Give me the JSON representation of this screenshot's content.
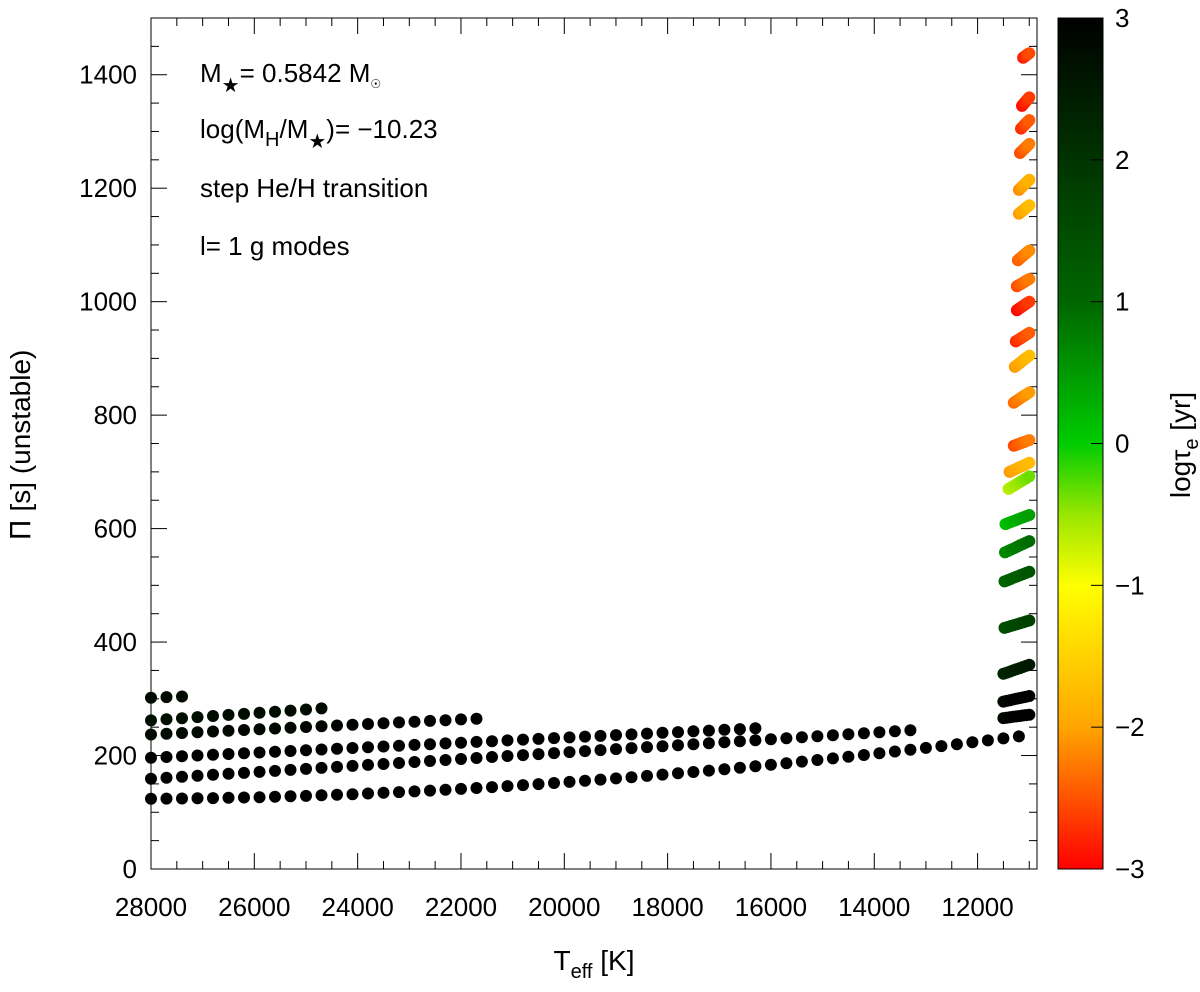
{
  "chart_data": {
    "type": "scatter",
    "x_axis": {
      "label_main": "T",
      "label_sub": "eff",
      "label_unit": " [K]",
      "range": [
        28000,
        10850
      ],
      "reversed": true,
      "major_ticks": [
        28000,
        26000,
        24000,
        22000,
        20000,
        18000,
        16000,
        14000,
        12000
      ],
      "minor_step": 500
    },
    "y_axis": {
      "label_symbol": "Π",
      "label_text": " [s] (unstable)",
      "range": [
        0,
        1500
      ],
      "major_ticks": [
        0,
        200,
        400,
        600,
        800,
        1000,
        1200,
        1400
      ],
      "minor_step": 50
    },
    "colorbar": {
      "label_main": "logτ",
      "label_sub": "e",
      "label_unit": " [yr]",
      "range": [
        -3,
        3
      ],
      "ticks": [
        3,
        2,
        1,
        0,
        -1,
        -2,
        -3
      ],
      "tick_labels": [
        "3",
        "2",
        "1",
        "0",
        "−1",
        "−2",
        "−3"
      ],
      "colors": [
        "#ff0000",
        "#ffa500",
        "#ffff00",
        "#99e600",
        "#00cc00",
        "#006600",
        "#000000"
      ]
    },
    "annotations": {
      "mass_prefix": "M",
      "mass_star": "★",
      "mass_value": "= 0.5842 M",
      "mass_sun": "☉",
      "hmass_prefix": "log(M",
      "hmass_sub1": "H",
      "hmass_mid": "/M",
      "hmass_star": "★",
      "hmass_value": ")= −10.23",
      "transition": "step He/H transition",
      "modes": "l= 1 g modes"
    },
    "series_tracks": [
      {
        "t_start": 28000,
        "t_end": 27400,
        "p_start": 302,
        "p_end": 304,
        "logtau_start": 2.8,
        "logtau_end": 2.8
      },
      {
        "t_start": 28000,
        "t_end": 24700,
        "p_start": 262,
        "p_end": 283,
        "logtau_start": 2.7,
        "logtau_end": 2.8
      },
      {
        "t_start": 28000,
        "t_end": 21700,
        "p_start": 237,
        "p_end": 265,
        "logtau_start": 2.8,
        "logtau_end": 3.0
      },
      {
        "t_start": 28000,
        "t_end": 16300,
        "p_start": 196,
        "p_end": 248,
        "logtau_start": 3.0,
        "logtau_end": 3.0
      },
      {
        "t_start": 28000,
        "t_end": 13200,
        "p_start": 159,
        "p_end": 245,
        "logtau_start": 3.0,
        "logtau_end": 3.0
      },
      {
        "t_start": 28000,
        "t_end": 11000,
        "p_start": 124,
        "p_end": 236,
        "logtau_start": 3.0,
        "logtau_end": 3.0,
        "curved": true
      }
    ],
    "cool_edge_segments": [
      {
        "t_start": 11500,
        "t_end": 11000,
        "p_start": 266,
        "p_end": 272,
        "logtau": 3.0
      },
      {
        "t_start": 11500,
        "t_end": 11000,
        "p_start": 295,
        "p_end": 305,
        "logtau": 3.0
      },
      {
        "t_start": 11500,
        "t_end": 11000,
        "p_start": 344,
        "p_end": 360,
        "logtau": 2.4
      },
      {
        "t_start": 11480,
        "t_end": 11000,
        "p_start": 425,
        "p_end": 438,
        "logtau": 1.6
      },
      {
        "t_start": 11480,
        "t_end": 11000,
        "p_start": 507,
        "p_end": 524,
        "logtau": 1.2
      },
      {
        "t_start": 11470,
        "t_end": 11000,
        "p_start": 558,
        "p_end": 578,
        "logtau": 0.8
      },
      {
        "t_start": 11460,
        "t_end": 11000,
        "p_start": 608,
        "p_end": 624,
        "logtau": 0.3
      },
      {
        "t_start": 11400,
        "t_end": 11000,
        "p_start": 670,
        "p_end": 692,
        "logtau": -0.5
      },
      {
        "t_start": 11380,
        "t_end": 11000,
        "p_start": 700,
        "p_end": 716,
        "logtau": -1.9
      },
      {
        "t_start": 11300,
        "t_end": 11000,
        "p_start": 746,
        "p_end": 756,
        "logtau": -2.4
      },
      {
        "t_start": 11300,
        "t_end": 11000,
        "p_start": 822,
        "p_end": 840,
        "logtau": -2.2
      },
      {
        "t_start": 11280,
        "t_end": 11000,
        "p_start": 885,
        "p_end": 905,
        "logtau": -1.9
      },
      {
        "t_start": 11260,
        "t_end": 11000,
        "p_start": 930,
        "p_end": 945,
        "logtau": -2.6
      },
      {
        "t_start": 11240,
        "t_end": 11000,
        "p_start": 985,
        "p_end": 1000,
        "logtau": -2.8
      },
      {
        "t_start": 11240,
        "t_end": 11000,
        "p_start": 1027,
        "p_end": 1040,
        "logtau": -2.4
      },
      {
        "t_start": 11220,
        "t_end": 11000,
        "p_start": 1073,
        "p_end": 1090,
        "logtau": -2.3
      },
      {
        "t_start": 11200,
        "t_end": 11000,
        "p_start": 1155,
        "p_end": 1170,
        "logtau": -1.9
      },
      {
        "t_start": 11200,
        "t_end": 11000,
        "p_start": 1197,
        "p_end": 1215,
        "logtau": -2.0
      },
      {
        "t_start": 11180,
        "t_end": 11000,
        "p_start": 1262,
        "p_end": 1278,
        "logtau": -2.4
      },
      {
        "t_start": 11160,
        "t_end": 11000,
        "p_start": 1305,
        "p_end": 1320,
        "logtau": -2.6
      },
      {
        "t_start": 11140,
        "t_end": 11000,
        "p_start": 1345,
        "p_end": 1360,
        "logtau": -2.8
      },
      {
        "t_start": 11120,
        "t_end": 11000,
        "p_start": 1430,
        "p_end": 1438,
        "logtau": -2.7
      }
    ],
    "grid": false,
    "legend": "colorbar-right"
  }
}
